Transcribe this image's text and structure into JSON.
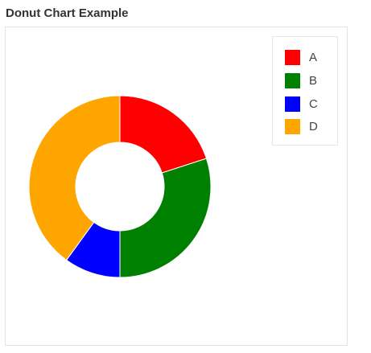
{
  "chart_data": {
    "type": "pie",
    "title": "Donut Chart Example",
    "categories": [
      "A",
      "B",
      "C",
      "D"
    ],
    "values": [
      20,
      30,
      10,
      40
    ],
    "colors": [
      "#ff0000",
      "#008000",
      "#0000ff",
      "#ffa500"
    ],
    "legend": {
      "placement": "top-right"
    },
    "style": "donut"
  }
}
